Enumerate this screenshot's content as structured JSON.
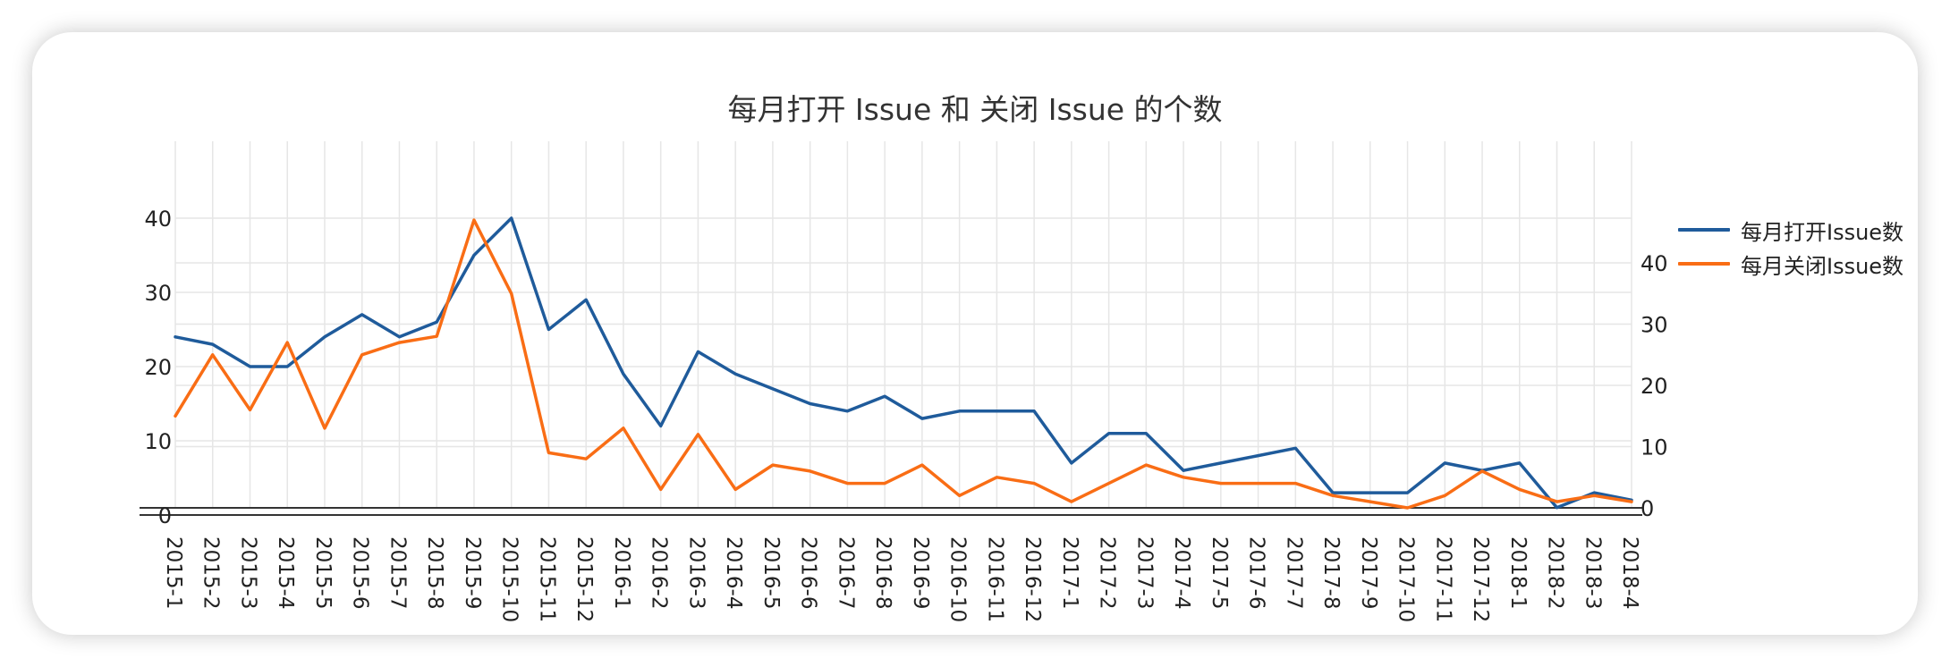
{
  "chart_data": {
    "type": "line",
    "title": "每月打开 Issue 和 关闭 Issue 的个数",
    "categories": [
      "2015-1",
      "2015-2",
      "2015-3",
      "2015-4",
      "2015-5",
      "2015-6",
      "2015-7",
      "2015-8",
      "2015-9",
      "2015-10",
      "2015-11",
      "2015-12",
      "2016-1",
      "2016-2",
      "2016-3",
      "2016-4",
      "2016-5",
      "2016-6",
      "2016-7",
      "2016-8",
      "2016-9",
      "2016-10",
      "2016-11",
      "2016-12",
      "2017-1",
      "2017-2",
      "2017-3",
      "2017-4",
      "2017-5",
      "2017-6",
      "2017-7",
      "2017-8",
      "2017-9",
      "2017-10",
      "2017-11",
      "2017-12",
      "2018-1",
      "2018-2",
      "2018-3",
      "2018-4"
    ],
    "series": [
      {
        "name": "每月打开Issue数",
        "axis": "left",
        "color": "#1f5b9b",
        "values": [
          24,
          23,
          20,
          20,
          24,
          27,
          24,
          26,
          35,
          40,
          25,
          29,
          19,
          12,
          22,
          19,
          17,
          15,
          14,
          16,
          13,
          14,
          14,
          14,
          7,
          11,
          11,
          6,
          7,
          8,
          9,
          3,
          3,
          3,
          7,
          6,
          7,
          1,
          3,
          2
        ]
      },
      {
        "name": "每月关闭Issue数",
        "axis": "right",
        "color": "#f96d15",
        "values": [
          15,
          25,
          16,
          27,
          13,
          25,
          27,
          28,
          47,
          35,
          9,
          8,
          13,
          3,
          12,
          3,
          7,
          6,
          4,
          4,
          7,
          2,
          5,
          4,
          1,
          4,
          7,
          5,
          4,
          4,
          4,
          2,
          1,
          0,
          2,
          6,
          3,
          1,
          2,
          1
        ]
      }
    ],
    "left_axis": {
      "ylim": [
        0,
        40
      ],
      "ticks": [
        "0",
        "10",
        "20",
        "30",
        "40"
      ]
    },
    "right_axis": {
      "ylim": [
        0,
        47.5
      ],
      "ticks": [
        "0",
        "10",
        "20",
        "30",
        "40"
      ]
    },
    "grid": true,
    "legend": "top-right"
  }
}
